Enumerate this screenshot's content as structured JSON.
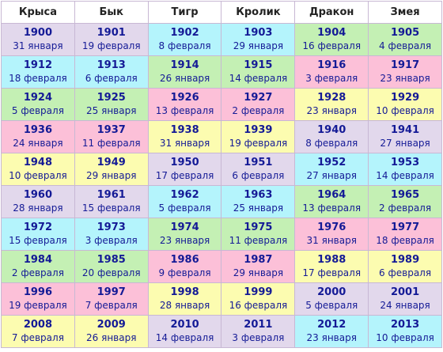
{
  "columns": [
    "Крыса",
    "Бык",
    "Тигр",
    "Кролик",
    "Дракон",
    "Змея"
  ],
  "colors": {
    "lavender": "#e2d8ec",
    "green": "#c4f0b4",
    "cyan": "#b4f4fc",
    "pink": "#fcc0d8",
    "yellow": "#fcfcb0",
    "text": "#141a96",
    "border": "#c8b8d4"
  },
  "rows": [
    [
      {
        "year": "1900",
        "date": "31 января",
        "color": "lavender"
      },
      {
        "year": "1901",
        "date": "19 февраля",
        "color": "lavender"
      },
      {
        "year": "1902",
        "date": "8 февраля",
        "color": "cyan"
      },
      {
        "year": "1903",
        "date": "29 января",
        "color": "cyan"
      },
      {
        "year": "1904",
        "date": "16 февраля",
        "color": "green"
      },
      {
        "year": "1905",
        "date": "4 февраля",
        "color": "green"
      }
    ],
    [
      {
        "year": "1912",
        "date": "18 февраля",
        "color": "cyan"
      },
      {
        "year": "1913",
        "date": "6 февраля",
        "color": "cyan"
      },
      {
        "year": "1914",
        "date": "26 января",
        "color": "green"
      },
      {
        "year": "1915",
        "date": "14 февраля",
        "color": "green"
      },
      {
        "year": "1916",
        "date": "3 февраля",
        "color": "pink"
      },
      {
        "year": "1917",
        "date": "23 января",
        "color": "pink"
      }
    ],
    [
      {
        "year": "1924",
        "date": "5 февраля",
        "color": "green"
      },
      {
        "year": "1925",
        "date": "25 января",
        "color": "green"
      },
      {
        "year": "1926",
        "date": "13 февраля",
        "color": "pink"
      },
      {
        "year": "1927",
        "date": "2 февраля",
        "color": "pink"
      },
      {
        "year": "1928",
        "date": "23 января",
        "color": "yellow"
      },
      {
        "year": "1929",
        "date": "10 февраля",
        "color": "yellow"
      }
    ],
    [
      {
        "year": "1936",
        "date": "24 января",
        "color": "pink"
      },
      {
        "year": "1937",
        "date": "11 февраля",
        "color": "pink"
      },
      {
        "year": "1938",
        "date": "31 января",
        "color": "yellow"
      },
      {
        "year": "1939",
        "date": "19 февраля",
        "color": "yellow"
      },
      {
        "year": "1940",
        "date": "8 февраля",
        "color": "lavender"
      },
      {
        "year": "1941",
        "date": "27 января",
        "color": "lavender"
      }
    ],
    [
      {
        "year": "1948",
        "date": "10 февраля",
        "color": "yellow"
      },
      {
        "year": "1949",
        "date": "29 января",
        "color": "yellow"
      },
      {
        "year": "1950",
        "date": "17 февраля",
        "color": "lavender"
      },
      {
        "year": "1951",
        "date": "6 февраля",
        "color": "lavender"
      },
      {
        "year": "1952",
        "date": "27 января",
        "color": "cyan"
      },
      {
        "year": "1953",
        "date": "14 февраля",
        "color": "cyan"
      }
    ],
    [
      {
        "year": "1960",
        "date": "28 января",
        "color": "lavender"
      },
      {
        "year": "1961",
        "date": "15 февраля",
        "color": "lavender"
      },
      {
        "year": "1962",
        "date": "5 февраля",
        "color": "cyan"
      },
      {
        "year": "1963",
        "date": "25 января",
        "color": "cyan"
      },
      {
        "year": "1964",
        "date": "13 февраля",
        "color": "green"
      },
      {
        "year": "1965",
        "date": "2 февраля",
        "color": "green"
      }
    ],
    [
      {
        "year": "1972",
        "date": "15 февраля",
        "color": "cyan"
      },
      {
        "year": "1973",
        "date": "3 февраля",
        "color": "cyan"
      },
      {
        "year": "1974",
        "date": "23 января",
        "color": "green"
      },
      {
        "year": "1975",
        "date": "11 февраля",
        "color": "green"
      },
      {
        "year": "1976",
        "date": "31 января",
        "color": "pink"
      },
      {
        "year": "1977",
        "date": "18 февраля",
        "color": "pink"
      }
    ],
    [
      {
        "year": "1984",
        "date": "2 февраля",
        "color": "green"
      },
      {
        "year": "1985",
        "date": "20 февраля",
        "color": "green"
      },
      {
        "year": "1986",
        "date": "9 февраля",
        "color": "pink"
      },
      {
        "year": "1987",
        "date": "29 января",
        "color": "pink"
      },
      {
        "year": "1988",
        "date": "17 февраля",
        "color": "yellow"
      },
      {
        "year": "1989",
        "date": "6 февраля",
        "color": "yellow"
      }
    ],
    [
      {
        "year": "1996",
        "date": "19 февраля",
        "color": "pink"
      },
      {
        "year": "1997",
        "date": "7 февраля",
        "color": "pink"
      },
      {
        "year": "1998",
        "date": "28 января",
        "color": "yellow"
      },
      {
        "year": "1999",
        "date": "16 февраля",
        "color": "yellow"
      },
      {
        "year": "2000",
        "date": "5 февраля",
        "color": "lavender"
      },
      {
        "year": "2001",
        "date": "24 января",
        "color": "lavender"
      }
    ],
    [
      {
        "year": "2008",
        "date": "7 февраля",
        "color": "yellow"
      },
      {
        "year": "2009",
        "date": "26 января",
        "color": "yellow"
      },
      {
        "year": "2010",
        "date": "14 февраля",
        "color": "lavender"
      },
      {
        "year": "2011",
        "date": "3 февраля",
        "color": "lavender"
      },
      {
        "year": "2012",
        "date": "23 января",
        "color": "cyan"
      },
      {
        "year": "2013",
        "date": "10 февраля",
        "color": "cyan"
      }
    ]
  ]
}
